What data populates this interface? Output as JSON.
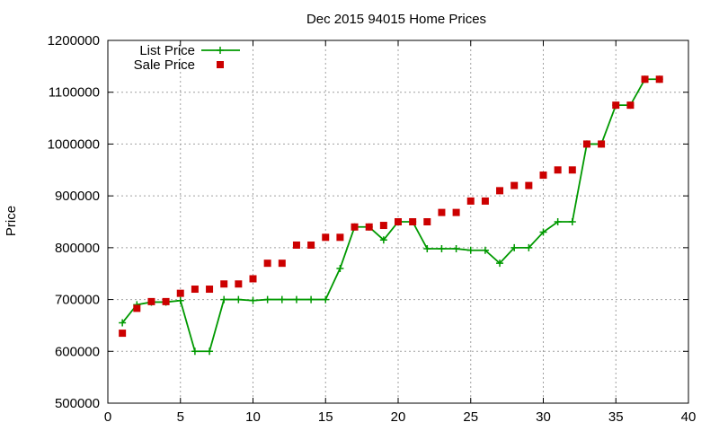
{
  "chart_data": {
    "type": "line",
    "title": "Dec 2015 94015 Home Prices",
    "xlabel": "",
    "ylabel": "Price",
    "xlim": [
      0,
      40
    ],
    "ylim": [
      500000,
      1200000
    ],
    "xticks": [
      0,
      5,
      10,
      15,
      20,
      25,
      30,
      35,
      40
    ],
    "yticks": [
      500000,
      600000,
      700000,
      800000,
      900000,
      1000000,
      1100000,
      1200000
    ],
    "grid": true,
    "legend_position": "top-left",
    "series": [
      {
        "name": "List Price",
        "style": "line-points",
        "color": "#009900",
        "x": [
          1,
          2,
          3,
          4,
          5,
          6,
          7,
          8,
          9,
          10,
          11,
          12,
          13,
          14,
          15,
          16,
          17,
          18,
          19,
          20,
          21,
          22,
          23,
          24,
          25,
          26,
          27,
          28,
          29,
          30,
          31,
          32,
          33,
          34,
          35,
          36,
          37,
          38
        ],
        "y": [
          655000,
          690000,
          695000,
          695000,
          698000,
          600000,
          600000,
          700000,
          700000,
          698000,
          700000,
          700000,
          700000,
          700000,
          700000,
          760000,
          840000,
          840000,
          815000,
          850000,
          850000,
          798000,
          798000,
          798000,
          795000,
          795000,
          770000,
          800000,
          800000,
          830000,
          850000,
          850000,
          1000000,
          1000000,
          1075000,
          1075000,
          1125000,
          1125000
        ]
      },
      {
        "name": "Sale Price",
        "style": "points",
        "color": "#cc0000",
        "x": [
          1,
          2,
          3,
          4,
          5,
          6,
          7,
          8,
          9,
          10,
          11,
          12,
          13,
          14,
          15,
          16,
          17,
          18,
          19,
          20,
          21,
          22,
          23,
          24,
          25,
          26,
          27,
          28,
          29,
          30,
          31,
          32,
          33,
          34,
          35,
          36,
          37,
          38
        ],
        "y": [
          635000,
          683000,
          696000,
          696000,
          712000,
          720000,
          720000,
          730000,
          730000,
          740000,
          770000,
          770000,
          805000,
          805000,
          820000,
          820000,
          840000,
          840000,
          843000,
          850000,
          850000,
          850000,
          868000,
          868000,
          890000,
          890000,
          910000,
          920000,
          920000,
          940000,
          950000,
          950000,
          1000000,
          1000000,
          1075000,
          1075000,
          1125000,
          1125000
        ]
      }
    ]
  }
}
